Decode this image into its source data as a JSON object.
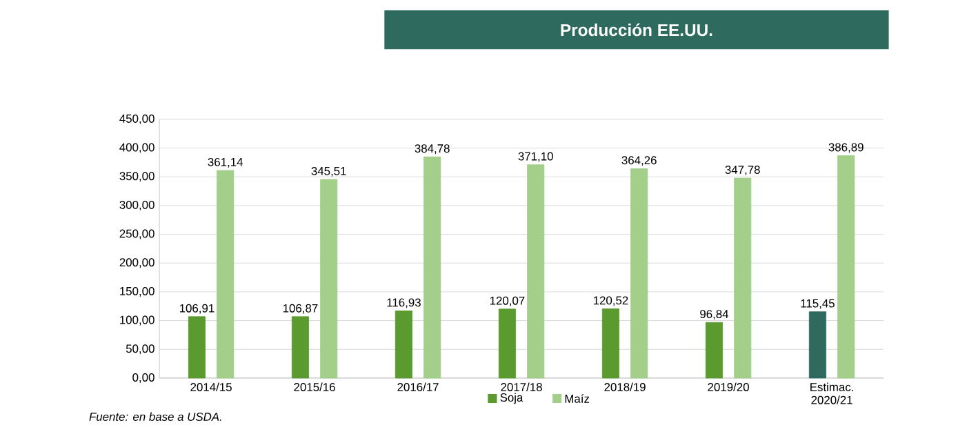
{
  "chart_data": {
    "type": "bar",
    "title": "Producción EE.UU.",
    "categories": [
      "2014/15",
      "2015/16",
      "2016/17",
      "2017/18",
      "2018/19",
      "2019/20",
      "Estimac. 2020/21"
    ],
    "series": [
      {
        "name": "Soja",
        "color": "#5a9a2e",
        "colors": [
          "#5a9a2e",
          "#5a9a2e",
          "#5a9a2e",
          "#5a9a2e",
          "#5a9a2e",
          "#5a9a2e",
          "#2e6b5e"
        ],
        "values": [
          106.91,
          106.87,
          116.93,
          120.07,
          120.52,
          96.84,
          115.45
        ],
        "value_labels": [
          "106,91",
          "106,87",
          "116,93",
          "120,07",
          "120,52",
          "96,84",
          "115,45"
        ]
      },
      {
        "name": "Maíz",
        "color": "#a3cf8a",
        "values": [
          361.14,
          345.51,
          384.78,
          371.1,
          364.26,
          347.78,
          386.89
        ],
        "value_labels": [
          "361,14",
          "345,51",
          "384,78",
          "371,10",
          "364,26",
          "347,78",
          "386,89"
        ]
      }
    ],
    "ylim": [
      0,
      450
    ],
    "yticks": [
      {
        "value": 0,
        "label": "0,00"
      },
      {
        "value": 50,
        "label": "50,00"
      },
      {
        "value": 100,
        "label": "100,00"
      },
      {
        "value": 150,
        "label": "150,00"
      },
      {
        "value": 200,
        "label": "200,00"
      },
      {
        "value": 250,
        "label": "250,00"
      },
      {
        "value": 300,
        "label": "300,00"
      },
      {
        "value": 350,
        "label": "350,00"
      },
      {
        "value": 400,
        "label": "400,00"
      },
      {
        "value": 450,
        "label": "450,00"
      }
    ],
    "grid": "y",
    "legend": "bottom",
    "annotations": [
      "Fuente: en base a USDA."
    ]
  }
}
